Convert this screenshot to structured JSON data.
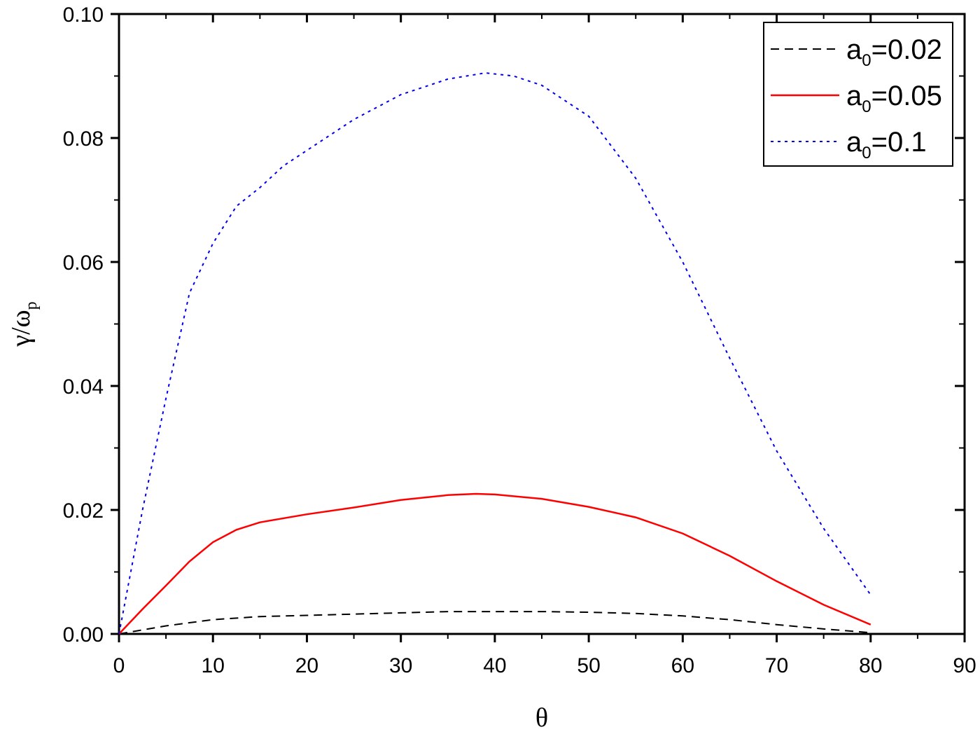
{
  "chart_data": {
    "type": "line",
    "xlabel": "θ",
    "ylabel_main": "γ/ω",
    "ylabel_sub": "p",
    "xlim": [
      0,
      90
    ],
    "ylim": [
      0,
      0.1
    ],
    "x_ticks": [
      0,
      10,
      20,
      30,
      40,
      50,
      60,
      70,
      80,
      90
    ],
    "x_tick_labels": [
      "0",
      "10",
      "20",
      "30",
      "40",
      "50",
      "60",
      "70",
      "80",
      "90"
    ],
    "y_ticks": [
      0,
      0.02,
      0.04,
      0.06,
      0.08,
      0.1
    ],
    "y_tick_labels": [
      "0.00",
      "0.02",
      "0.04",
      "0.06",
      "0.08",
      "0.10"
    ],
    "grid": false,
    "legend_position": "top-right",
    "series": [
      {
        "name_main": "a",
        "name_sub": "0",
        "name_rest": "=0.02",
        "color": "#000000",
        "style": "dashed",
        "x": [
          0,
          5,
          10,
          15,
          20,
          25,
          30,
          35,
          40,
          45,
          50,
          55,
          60,
          65,
          70,
          75,
          80
        ],
        "y": [
          0.0,
          0.0013,
          0.0023,
          0.0028,
          0.003,
          0.0032,
          0.0034,
          0.0036,
          0.0036,
          0.0036,
          0.0035,
          0.0033,
          0.0029,
          0.0023,
          0.0015,
          0.0008,
          0.0002
        ]
      },
      {
        "name_main": "a",
        "name_sub": "0",
        "name_rest": "=0.05",
        "color": "#ff0000",
        "style": "solid",
        "x": [
          0,
          2.5,
          5,
          7.5,
          10,
          12.5,
          15,
          20,
          25,
          30,
          35,
          38,
          40,
          45,
          50,
          55,
          60,
          65,
          70,
          75,
          80
        ],
        "y": [
          0.0,
          0.004,
          0.0078,
          0.0117,
          0.0148,
          0.0168,
          0.018,
          0.0193,
          0.0204,
          0.0216,
          0.0224,
          0.0226,
          0.0225,
          0.0218,
          0.0205,
          0.0188,
          0.0162,
          0.0126,
          0.0085,
          0.0047,
          0.0015
        ]
      },
      {
        "name_main": "a",
        "name_sub": "0",
        "name_rest": "=0.1",
        "color": "#0000ee",
        "style": "dotted",
        "x": [
          0,
          2.5,
          5,
          7.5,
          10,
          12.5,
          15,
          17.5,
          20,
          25,
          30,
          35,
          39,
          42,
          45,
          50,
          55,
          60,
          65,
          70,
          75,
          80
        ],
        "y": [
          0.0,
          0.02,
          0.038,
          0.055,
          0.063,
          0.069,
          0.072,
          0.0755,
          0.078,
          0.083,
          0.087,
          0.0895,
          0.0905,
          0.09,
          0.0885,
          0.0835,
          0.0735,
          0.06,
          0.0445,
          0.0295,
          0.017,
          0.0063
        ]
      }
    ]
  }
}
